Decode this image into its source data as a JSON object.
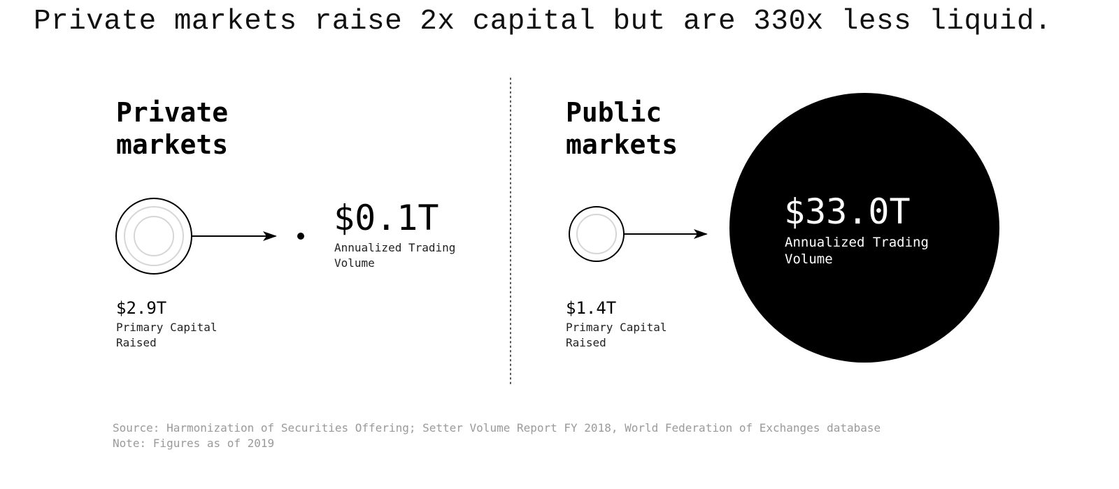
{
  "headline": "Private markets raise 2x capital but are 330x less liquid.",
  "private": {
    "title_line1": "Private",
    "title_line2": "markets",
    "primary_capital_value": "$2.9T",
    "primary_capital_label_line1": "Primary Capital",
    "primary_capital_label_line2": "Raised",
    "trading_volume_value": "$0.1T",
    "trading_volume_label_line1": "Annualized Trading",
    "trading_volume_label_line2": "Volume"
  },
  "public": {
    "title_line1": "Public",
    "title_line2": "markets",
    "primary_capital_value": "$1.4T",
    "primary_capital_label_line1": "Primary Capital",
    "primary_capital_label_line2": "Raised",
    "trading_volume_value": "$33.0T",
    "trading_volume_label_line1": "Annualized Trading",
    "trading_volume_label_line2": "Volume"
  },
  "footer": {
    "source": "Source: Harmonization of Securities Offering; Setter Volume Report FY 2018, World Federation of Exchanges database",
    "note": "Note: Figures as of 2019"
  },
  "colors": {
    "ink": "#000000",
    "ring": "#d6d6d6",
    "muted_text": "#9a9a9a"
  }
}
